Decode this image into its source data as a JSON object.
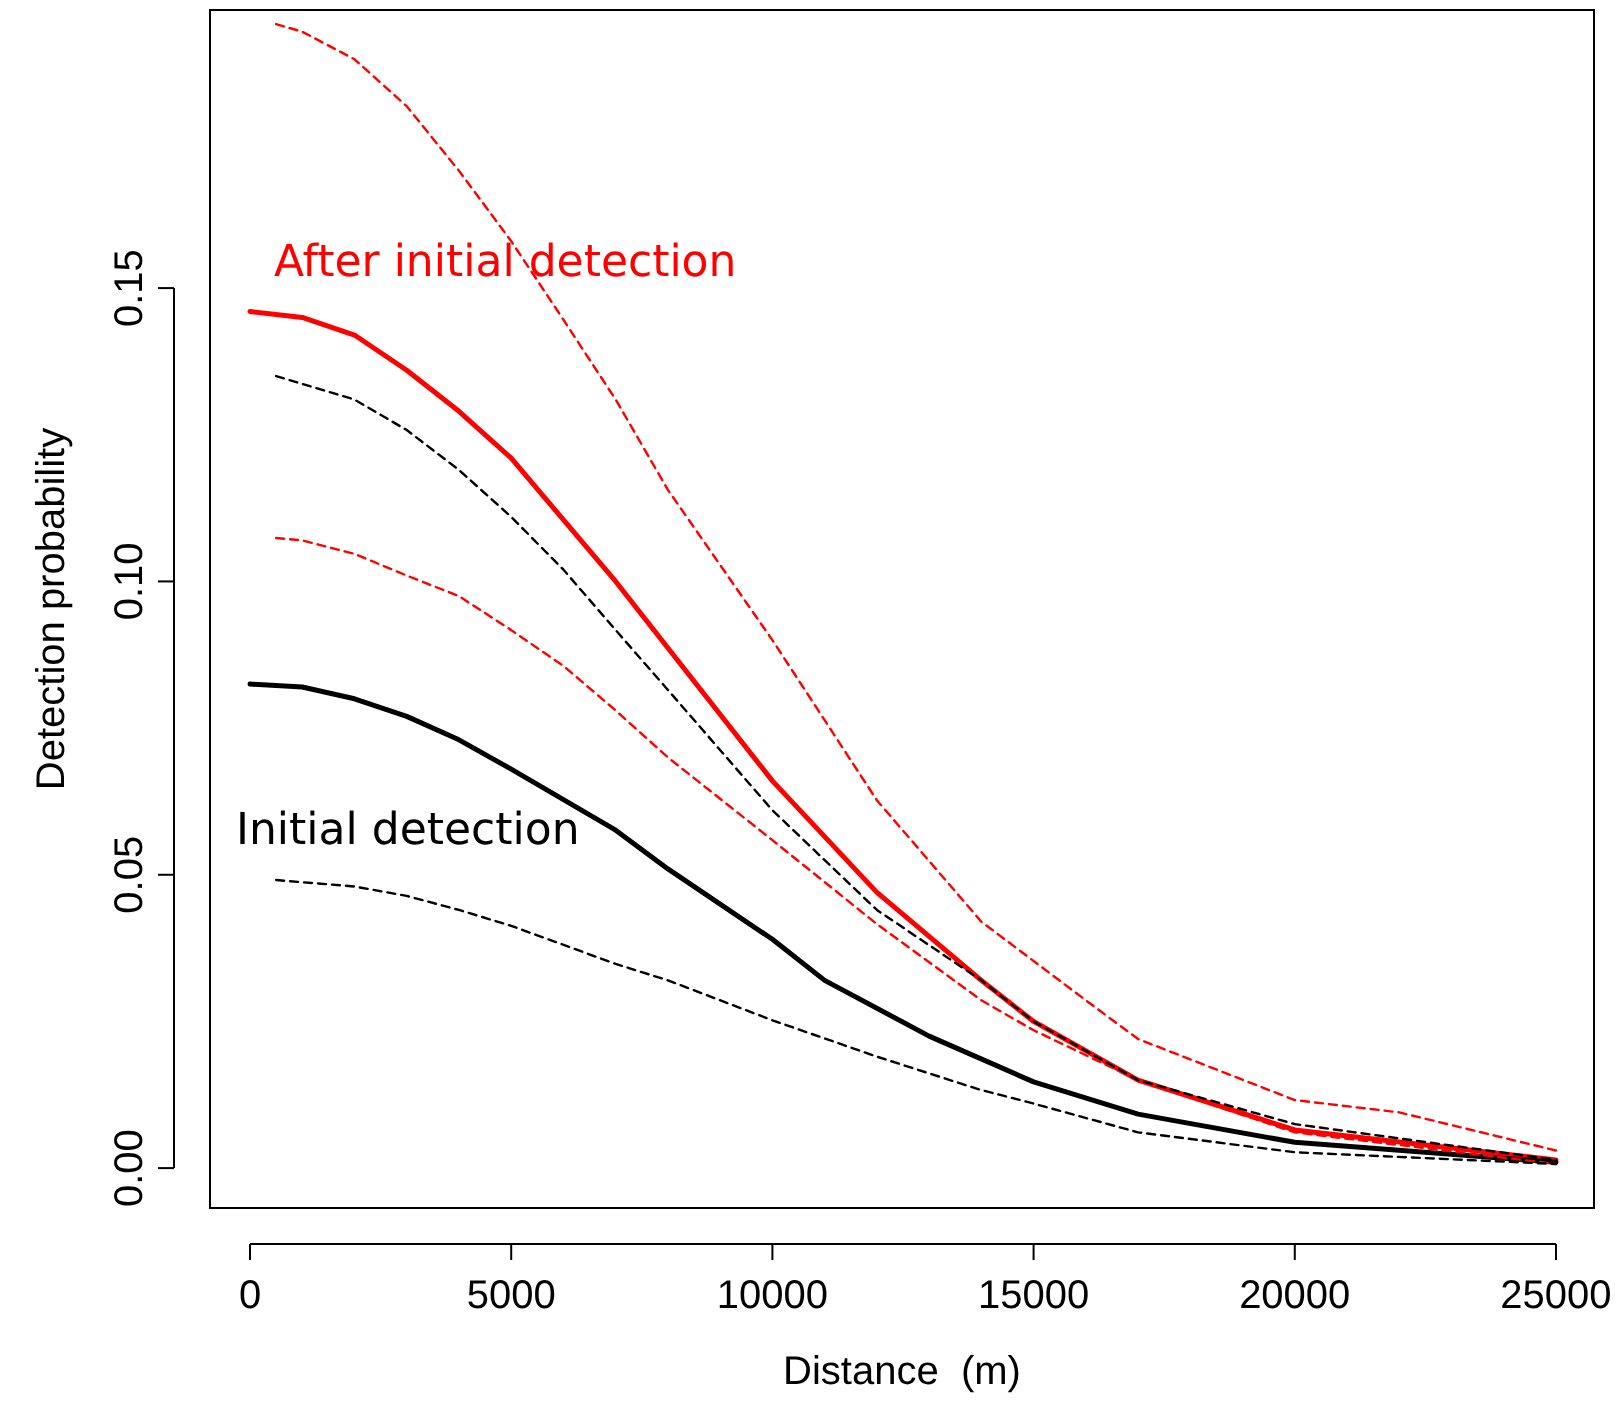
{
  "chart_data": {
    "type": "line",
    "xlabel": "Distance  (m)",
    "ylabel": "Detection probability",
    "xlim": [
      -766,
      25728
    ],
    "ylim": [
      -0.0068,
      0.1974
    ],
    "xticks": [
      0,
      5000,
      10000,
      15000,
      20000,
      25000
    ],
    "yticks": [
      {
        "value": 0,
        "label": "0.00"
      },
      {
        "value": 0.05,
        "label": "0.05"
      },
      {
        "value": 0.1,
        "label": "0.10"
      },
      {
        "value": 0.15,
        "label": "0.15"
      }
    ],
    "grid": false,
    "series": [
      {
        "name": "After initial detection",
        "color": "#ff0000",
        "line_style": "solid",
        "x": [
          0,
          1000,
          2000,
          3000,
          4000,
          5000,
          7000,
          10000,
          12000,
          14000,
          15000,
          17000,
          20000,
          25000
        ],
        "values": [
          0.146,
          0.145,
          0.142,
          0.136,
          0.129,
          0.121,
          0.1,
          0.066,
          0.047,
          0.032,
          0.025,
          0.015,
          0.0065,
          0.0014
        ]
      },
      {
        "name": "Initial detection",
        "color": "#000000",
        "line_style": "solid",
        "x": [
          0,
          1000,
          2000,
          3000,
          4000,
          5000,
          7000,
          8000,
          10000,
          11000,
          13000,
          15000,
          17000,
          20000,
          25000
        ],
        "values": [
          0.0825,
          0.082,
          0.08,
          0.077,
          0.073,
          0.068,
          0.0576,
          0.051,
          0.039,
          0.032,
          0.0225,
          0.0147,
          0.0092,
          0.0044,
          0.001
        ]
      },
      {
        "color": "#ff0000",
        "line_style": "dashed",
        "x": [
          500,
          1000,
          2000,
          3000,
          4000,
          5000,
          6000,
          7000,
          8000,
          10000,
          12000,
          14000,
          16000,
          17000,
          20000,
          22000,
          25000
        ],
        "values": [
          0.195,
          0.1937,
          0.189,
          0.181,
          0.17,
          0.158,
          0.1446,
          0.131,
          0.1156,
          0.09,
          0.0627,
          0.042,
          0.0286,
          0.022,
          0.0116,
          0.0095,
          0.003
        ]
      },
      {
        "color": "#ff0000",
        "line_style": "dashed",
        "x": [
          500,
          1000,
          2000,
          3000,
          4000,
          5000,
          6000,
          7000,
          8000,
          10000,
          12000,
          14000,
          15000,
          17000,
          20000,
          25000
        ],
        "values": [
          0.1074,
          0.107,
          0.1047,
          0.101,
          0.0975,
          0.0917,
          0.0856,
          0.078,
          0.07,
          0.0559,
          0.0416,
          0.0286,
          0.0235,
          0.015,
          0.0061,
          0.0007
        ]
      },
      {
        "color": "#000000",
        "line_style": "dashed",
        "x": [
          500,
          2000,
          3000,
          4000,
          5000,
          6000,
          7000,
          8000,
          10000,
          12000,
          14000,
          15000,
          17000,
          20000,
          25000
        ],
        "values": [
          0.135,
          0.131,
          0.1258,
          0.119,
          0.111,
          0.102,
          0.0917,
          0.0815,
          0.061,
          0.044,
          0.032,
          0.025,
          0.015,
          0.0075,
          0.0014
        ]
      },
      {
        "color": "#000000",
        "line_style": "dashed",
        "x": [
          500,
          2000,
          3000,
          4000,
          5000,
          7000,
          8000,
          10000,
          12000,
          14000,
          15000,
          17000,
          20000,
          25000
        ],
        "values": [
          0.0491,
          0.048,
          0.0464,
          0.044,
          0.0413,
          0.0348,
          0.032,
          0.0252,
          0.019,
          0.0133,
          0.011,
          0.0061,
          0.0027,
          0.0007
        ]
      }
    ]
  }
}
